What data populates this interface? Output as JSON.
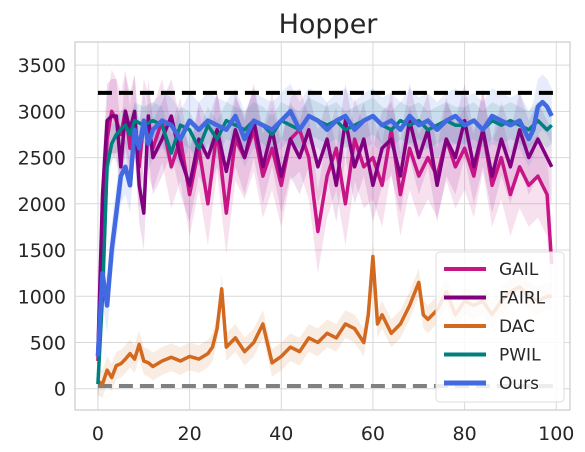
{
  "chart_data": {
    "type": "line",
    "title": "Hopper",
    "xlabel": "",
    "ylabel": "",
    "xlim": [
      -5,
      103
    ],
    "ylim": [
      -230,
      3750
    ],
    "xticks": [
      0,
      20,
      40,
      60,
      80,
      100
    ],
    "yticks": [
      0,
      500,
      1000,
      1500,
      2000,
      2500,
      3000,
      3500
    ],
    "grid": true,
    "legend_position": "lower-right",
    "reference_lines": [
      {
        "y": 3200,
        "color": "#000000",
        "style": "dashed"
      },
      {
        "y": 30,
        "color": "#808080",
        "style": "dashed"
      }
    ],
    "series": [
      {
        "name": "GAIL",
        "color": "#c71585",
        "band": 450,
        "points": [
          [
            0,
            300
          ],
          [
            1,
            1600
          ],
          [
            2,
            2700
          ],
          [
            3,
            3000
          ],
          [
            4,
            2900
          ],
          [
            5,
            2750
          ],
          [
            6,
            3000
          ],
          [
            7,
            2600
          ],
          [
            8,
            2950
          ],
          [
            9,
            2400
          ],
          [
            10,
            2900
          ],
          [
            12,
            2600
          ],
          [
            14,
            2900
          ],
          [
            16,
            2400
          ],
          [
            18,
            2700
          ],
          [
            20,
            2100
          ],
          [
            22,
            2600
          ],
          [
            24,
            2000
          ],
          [
            26,
            2800
          ],
          [
            28,
            1900
          ],
          [
            30,
            2700
          ],
          [
            32,
            2500
          ],
          [
            34,
            2800
          ],
          [
            36,
            2300
          ],
          [
            38,
            2600
          ],
          [
            40,
            2200
          ],
          [
            42,
            2700
          ],
          [
            44,
            2800
          ],
          [
            46,
            2500
          ],
          [
            48,
            1700
          ],
          [
            50,
            2300
          ],
          [
            52,
            2600
          ],
          [
            54,
            2000
          ],
          [
            56,
            2700
          ],
          [
            58,
            2400
          ],
          [
            60,
            2500
          ],
          [
            62,
            2200
          ],
          [
            64,
            2800
          ],
          [
            66,
            2100
          ],
          [
            68,
            2600
          ],
          [
            70,
            2300
          ],
          [
            72,
            2500
          ],
          [
            74,
            2300
          ],
          [
            76,
            2700
          ],
          [
            78,
            2400
          ],
          [
            80,
            2600
          ],
          [
            82,
            2300
          ],
          [
            84,
            2800
          ],
          [
            86,
            2200
          ],
          [
            88,
            2500
          ],
          [
            90,
            2100
          ],
          [
            92,
            2400
          ],
          [
            94,
            2200
          ],
          [
            96,
            2300
          ],
          [
            98,
            2100
          ],
          [
            99,
            1350
          ]
        ]
      },
      {
        "name": "FAIRL",
        "color": "#800080",
        "band": 400,
        "points": [
          [
            0,
            400
          ],
          [
            1,
            2100
          ],
          [
            2,
            2900
          ],
          [
            3,
            2950
          ],
          [
            4,
            2950
          ],
          [
            5,
            2400
          ],
          [
            6,
            3000
          ],
          [
            7,
            2800
          ],
          [
            8,
            3000
          ],
          [
            9,
            2200
          ],
          [
            10,
            1900
          ],
          [
            11,
            2950
          ],
          [
            12,
            2500
          ],
          [
            14,
            2700
          ],
          [
            16,
            2950
          ],
          [
            18,
            2500
          ],
          [
            20,
            2200
          ],
          [
            22,
            2700
          ],
          [
            24,
            2500
          ],
          [
            26,
            2800
          ],
          [
            28,
            2350
          ],
          [
            30,
            2800
          ],
          [
            32,
            2500
          ],
          [
            34,
            2900
          ],
          [
            36,
            2400
          ],
          [
            38,
            2800
          ],
          [
            40,
            2300
          ],
          [
            42,
            2700
          ],
          [
            44,
            2500
          ],
          [
            46,
            2800
          ],
          [
            48,
            2400
          ],
          [
            50,
            2700
          ],
          [
            52,
            2200
          ],
          [
            54,
            2900
          ],
          [
            56,
            2400
          ],
          [
            58,
            2700
          ],
          [
            60,
            2200
          ],
          [
            62,
            2600
          ],
          [
            64,
            2700
          ],
          [
            66,
            2300
          ],
          [
            68,
            2900
          ],
          [
            70,
            2500
          ],
          [
            72,
            2800
          ],
          [
            74,
            2200
          ],
          [
            76,
            2700
          ],
          [
            78,
            2500
          ],
          [
            80,
            2900
          ],
          [
            82,
            2400
          ],
          [
            84,
            2800
          ],
          [
            86,
            2300
          ],
          [
            88,
            2700
          ],
          [
            90,
            2400
          ],
          [
            92,
            2800
          ],
          [
            94,
            2500
          ],
          [
            96,
            2700
          ],
          [
            98,
            2500
          ],
          [
            99,
            2400
          ]
        ]
      },
      {
        "name": "DAC",
        "color": "#d2691e",
        "band": 150,
        "points": [
          [
            0,
            80
          ],
          [
            1,
            50
          ],
          [
            2,
            200
          ],
          [
            3,
            120
          ],
          [
            4,
            250
          ],
          [
            5,
            270
          ],
          [
            6,
            320
          ],
          [
            7,
            380
          ],
          [
            8,
            320
          ],
          [
            9,
            480
          ],
          [
            10,
            300
          ],
          [
            11,
            280
          ],
          [
            12,
            240
          ],
          [
            14,
            300
          ],
          [
            16,
            340
          ],
          [
            18,
            300
          ],
          [
            20,
            350
          ],
          [
            22,
            320
          ],
          [
            24,
            380
          ],
          [
            25,
            450
          ],
          [
            26,
            650
          ],
          [
            27,
            1080
          ],
          [
            28,
            450
          ],
          [
            30,
            550
          ],
          [
            32,
            400
          ],
          [
            34,
            500
          ],
          [
            36,
            700
          ],
          [
            38,
            280
          ],
          [
            40,
            350
          ],
          [
            42,
            450
          ],
          [
            44,
            400
          ],
          [
            46,
            550
          ],
          [
            48,
            500
          ],
          [
            50,
            600
          ],
          [
            52,
            550
          ],
          [
            54,
            700
          ],
          [
            56,
            650
          ],
          [
            58,
            500
          ],
          [
            59,
            800
          ],
          [
            60,
            1430
          ],
          [
            61,
            700
          ],
          [
            62,
            800
          ],
          [
            64,
            600
          ],
          [
            66,
            700
          ],
          [
            68,
            900
          ],
          [
            70,
            1150
          ],
          [
            71,
            800
          ],
          [
            72,
            750
          ],
          [
            74,
            850
          ],
          [
            76,
            1050
          ],
          [
            78,
            800
          ],
          [
            80,
            950
          ],
          [
            82,
            900
          ],
          [
            84,
            950
          ],
          [
            86,
            800
          ],
          [
            88,
            950
          ],
          [
            90,
            1050
          ],
          [
            92,
            1100
          ],
          [
            94,
            1000
          ],
          [
            96,
            950
          ],
          [
            98,
            1000
          ],
          [
            99,
            1000
          ]
        ]
      },
      {
        "name": "PWIL",
        "color": "#007f7f",
        "band": 200,
        "points": [
          [
            0,
            50
          ],
          [
            1,
            1000
          ],
          [
            2,
            2400
          ],
          [
            3,
            2650
          ],
          [
            4,
            2750
          ],
          [
            5,
            2800
          ],
          [
            6,
            2850
          ],
          [
            7,
            2750
          ],
          [
            8,
            2900
          ],
          [
            10,
            2850
          ],
          [
            12,
            2900
          ],
          [
            14,
            2850
          ],
          [
            16,
            2550
          ],
          [
            18,
            2850
          ],
          [
            20,
            2800
          ],
          [
            22,
            2600
          ],
          [
            24,
            2850
          ],
          [
            26,
            2700
          ],
          [
            28,
            2900
          ],
          [
            30,
            2850
          ],
          [
            32,
            2800
          ],
          [
            34,
            2900
          ],
          [
            36,
            2850
          ],
          [
            38,
            2750
          ],
          [
            40,
            2900
          ],
          [
            42,
            2850
          ],
          [
            44,
            2800
          ],
          [
            46,
            2950
          ],
          [
            48,
            2900
          ],
          [
            50,
            2850
          ],
          [
            52,
            2900
          ],
          [
            54,
            2800
          ],
          [
            56,
            2850
          ],
          [
            58,
            2900
          ],
          [
            60,
            2950
          ],
          [
            62,
            2850
          ],
          [
            64,
            2800
          ],
          [
            66,
            2900
          ],
          [
            68,
            2850
          ],
          [
            70,
            2900
          ],
          [
            72,
            2800
          ],
          [
            74,
            2850
          ],
          [
            76,
            2900
          ],
          [
            78,
            2850
          ],
          [
            80,
            2850
          ],
          [
            82,
            2900
          ],
          [
            84,
            2800
          ],
          [
            86,
            2900
          ],
          [
            88,
            2850
          ],
          [
            90,
            2900
          ],
          [
            92,
            2850
          ],
          [
            94,
            2800
          ],
          [
            96,
            2900
          ],
          [
            98,
            2800
          ],
          [
            99,
            2850
          ]
        ]
      },
      {
        "name": "Ours",
        "color": "#4169e1",
        "band": 300,
        "points": [
          [
            0,
            350
          ],
          [
            1,
            1250
          ],
          [
            2,
            900
          ],
          [
            3,
            1500
          ],
          [
            4,
            1900
          ],
          [
            5,
            2300
          ],
          [
            6,
            2400
          ],
          [
            7,
            2200
          ],
          [
            8,
            2800
          ],
          [
            9,
            2600
          ],
          [
            10,
            2900
          ],
          [
            11,
            2650
          ],
          [
            12,
            2800
          ],
          [
            14,
            2900
          ],
          [
            16,
            2850
          ],
          [
            18,
            2700
          ],
          [
            20,
            2900
          ],
          [
            22,
            2800
          ],
          [
            24,
            2900
          ],
          [
            26,
            2850
          ],
          [
            28,
            2800
          ],
          [
            30,
            2950
          ],
          [
            32,
            2700
          ],
          [
            34,
            2900
          ],
          [
            36,
            2850
          ],
          [
            38,
            2800
          ],
          [
            40,
            2900
          ],
          [
            42,
            3000
          ],
          [
            44,
            2800
          ],
          [
            46,
            2950
          ],
          [
            48,
            2900
          ],
          [
            50,
            2800
          ],
          [
            52,
            2900
          ],
          [
            54,
            2950
          ],
          [
            56,
            2800
          ],
          [
            58,
            2900
          ],
          [
            60,
            2950
          ],
          [
            62,
            2850
          ],
          [
            64,
            2900
          ],
          [
            66,
            2800
          ],
          [
            68,
            2950
          ],
          [
            70,
            2850
          ],
          [
            72,
            2900
          ],
          [
            74,
            2800
          ],
          [
            76,
            2900
          ],
          [
            78,
            2950
          ],
          [
            80,
            2850
          ],
          [
            82,
            2900
          ],
          [
            84,
            2800
          ],
          [
            86,
            2950
          ],
          [
            88,
            2900
          ],
          [
            90,
            2850
          ],
          [
            92,
            2900
          ],
          [
            94,
            2700
          ],
          [
            95,
            2800
          ],
          [
            96,
            3050
          ],
          [
            97,
            3100
          ],
          [
            98,
            3050
          ],
          [
            99,
            2950
          ]
        ]
      }
    ]
  }
}
